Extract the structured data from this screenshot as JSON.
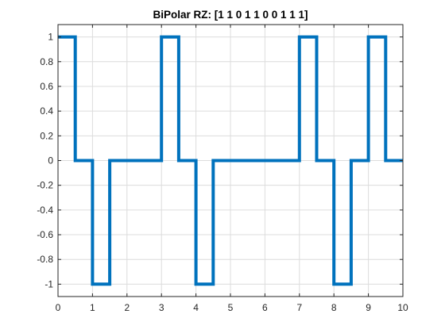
{
  "chart_data": {
    "type": "line",
    "title": "BiPolar RZ: [1  1  0  1  1  0  0  1  1  1]",
    "xlabel": "",
    "ylabel": "",
    "xlim": [
      0,
      10
    ],
    "ylim": [
      -1.1,
      1.1
    ],
    "grid": true,
    "line_color": "#0072BD",
    "x_ticks": [
      0,
      1,
      2,
      3,
      4,
      5,
      6,
      7,
      8,
      9,
      10
    ],
    "x_tick_labels": [
      "0",
      "1",
      "2",
      "3",
      "4",
      "5",
      "6",
      "7",
      "8",
      "9",
      "10"
    ],
    "y_ticks": [
      -1,
      -0.8,
      -0.6,
      -0.4,
      -0.2,
      0,
      0.2,
      0.4,
      0.6,
      0.8,
      1
    ],
    "y_tick_labels": [
      "-1",
      "-0.8",
      "-0.6",
      "-0.4",
      "-0.2",
      "0",
      "0.2",
      "0.4",
      "0.6",
      "0.8",
      "1"
    ],
    "series": [
      {
        "x": [
          0,
          0.5,
          0.5,
          1,
          1,
          1.5,
          1.5,
          3,
          3,
          3.5,
          3.5,
          4,
          4,
          4.5,
          4.5,
          7,
          7,
          7.5,
          7.5,
          8,
          8,
          8.5,
          8.5,
          9,
          9,
          9.5,
          9.5,
          10
        ],
        "y": [
          1,
          1,
          0,
          0,
          -1,
          -1,
          0,
          0,
          1,
          1,
          0,
          0,
          -1,
          -1,
          0,
          0,
          1,
          1,
          0,
          0,
          -1,
          -1,
          0,
          0,
          1,
          1,
          0,
          0
        ]
      }
    ]
  }
}
